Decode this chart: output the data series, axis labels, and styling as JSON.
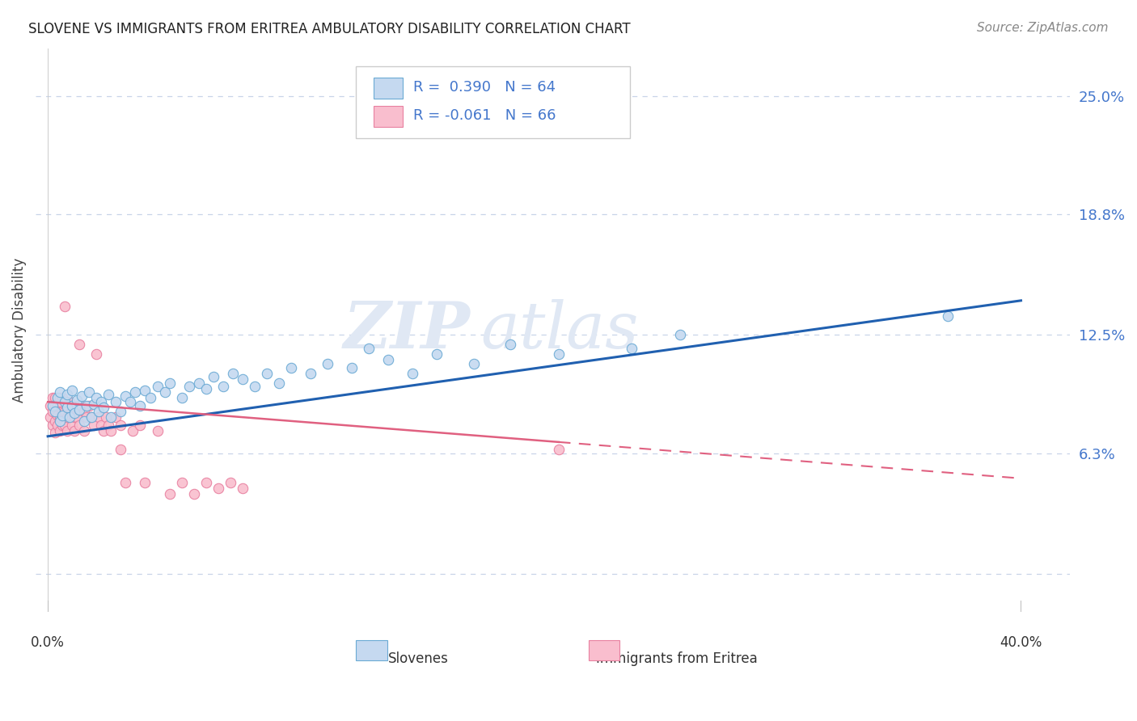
{
  "title": "SLOVENE VS IMMIGRANTS FROM ERITREA AMBULATORY DISABILITY CORRELATION CHART",
  "source": "Source: ZipAtlas.com",
  "ylabel": "Ambulatory Disability",
  "ytick_vals": [
    0.0,
    0.063,
    0.125,
    0.188,
    0.25
  ],
  "ytick_labels": [
    "",
    "6.3%",
    "12.5%",
    "18.8%",
    "25.0%"
  ],
  "xlim": [
    -0.005,
    0.42
  ],
  "ylim": [
    -0.02,
    0.275
  ],
  "blue_fill": "#c5d9f0",
  "blue_edge": "#6aaad4",
  "blue_line": "#2060b0",
  "pink_fill": "#f9bece",
  "pink_edge": "#e880a0",
  "pink_line": "#e06080",
  "background_color": "#ffffff",
  "grid_color": "#c8d4e8",
  "watermark_color": "#e0e8f4",
  "legend_R1": "R =  0.390",
  "legend_N1": "N = 64",
  "legend_R2": "R = -0.061",
  "legend_N2": "N = 66",
  "text_color": "#4477cc",
  "title_color": "#222222",
  "source_color": "#888888"
}
